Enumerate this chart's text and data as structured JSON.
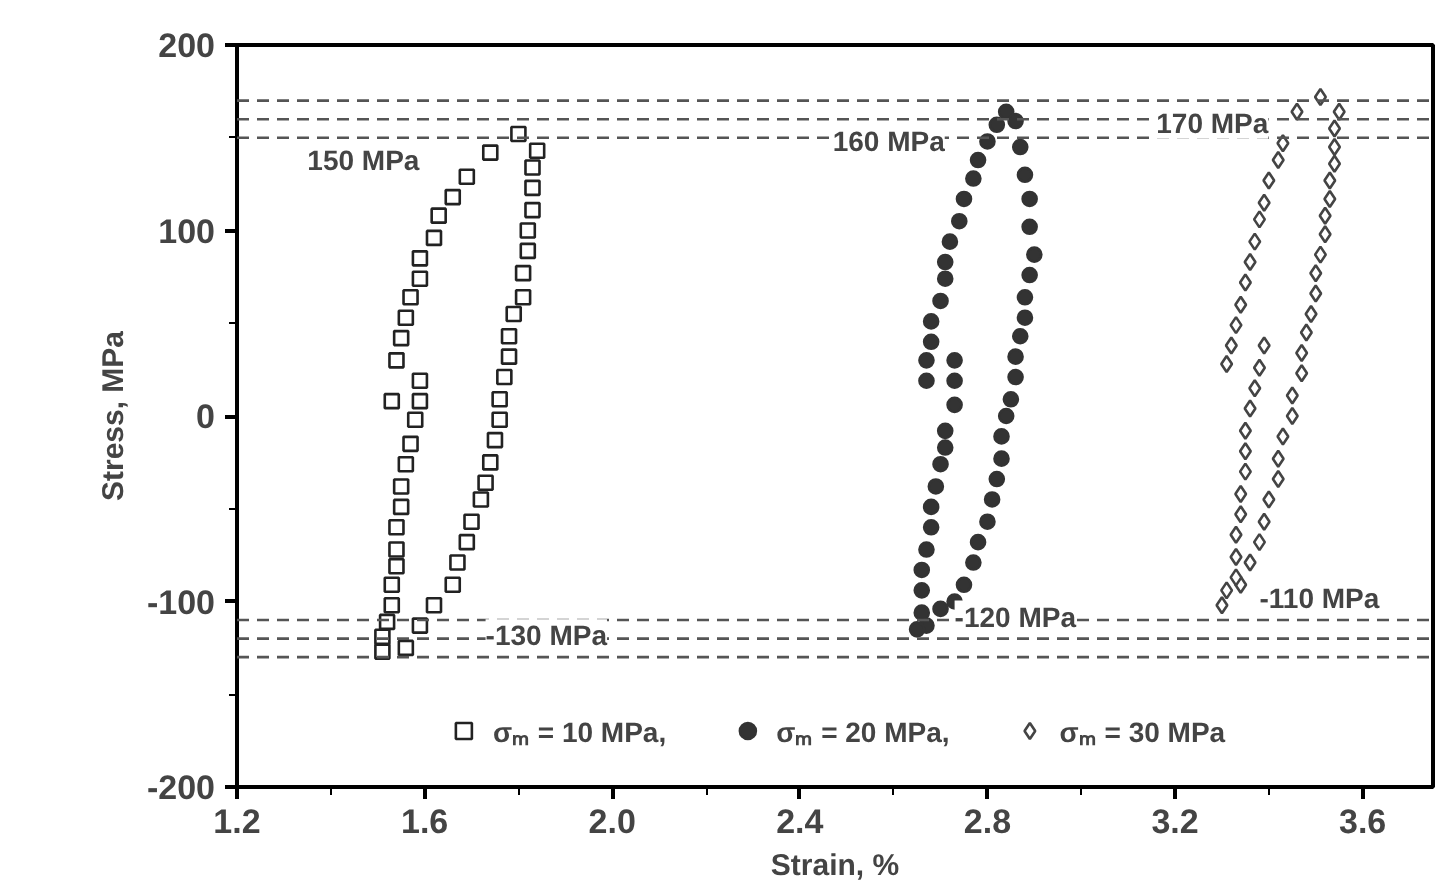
{
  "chart_data": {
    "type": "scatter",
    "xlabel": "Strain, %",
    "ylabel": "Stress, MPa",
    "xlim": [
      1.2,
      3.75
    ],
    "ylim": [
      -200,
      200
    ],
    "xticks": [
      1.2,
      {
        "value": 1.4,
        "label": null
      },
      1.6,
      {
        "value": 1.8,
        "label": null
      },
      {
        "value": 2.0,
        "label": "2.0"
      },
      {
        "value": 2.2,
        "label": null
      },
      2.4,
      {
        "value": 2.6,
        "label": null
      },
      2.8,
      {
        "value": 3.0,
        "label": null
      },
      3.2,
      {
        "value": 3.4,
        "label": null
      },
      3.6
    ],
    "yticks": [
      -200,
      {
        "value": -150,
        "label": null
      },
      -100,
      {
        "value": -50,
        "label": null
      },
      0,
      {
        "value": 50,
        "label": null
      },
      100,
      {
        "value": 150,
        "label": null
      },
      200
    ],
    "grid": false,
    "legend": "bottom",
    "series": [
      {
        "name": "σₘ = 10 MPa,",
        "color": "#222222",
        "marker": "square",
        "x": [
          1.53,
          1.54,
          1.55,
          1.56,
          1.57,
          1.59,
          1.59,
          1.62,
          1.63,
          1.66,
          1.69,
          1.74,
          1.8,
          1.84,
          1.83,
          1.83,
          1.83,
          1.82,
          1.82,
          1.81,
          1.81,
          1.79,
          1.78,
          1.78,
          1.77,
          1.76,
          1.76,
          1.75,
          1.74,
          1.73,
          1.72,
          1.7,
          1.69,
          1.67,
          1.66,
          1.62,
          1.59,
          1.56,
          1.51,
          1.51,
          1.52,
          1.53,
          1.53,
          1.54,
          1.54,
          1.54,
          1.55,
          1.55,
          1.56,
          1.57,
          1.58,
          1.59,
          1.59
        ],
        "values": [
          8,
          30,
          42,
          53,
          64,
          74,
          85,
          96,
          108,
          118,
          129,
          142,
          152,
          143,
          134,
          123,
          111,
          100,
          89,
          77,
          64,
          55,
          43,
          32,
          21,
          9,
          -2,
          -13,
          -25,
          -36,
          -45,
          -57,
          -68,
          -79,
          -91,
          -102,
          -113,
          -125,
          -127,
          -119,
          -111,
          -102,
          -91,
          -81,
          -72,
          -60,
          -49,
          -38,
          -26,
          -15,
          -2,
          8,
          19
        ]
      },
      {
        "name": "σₘ = 20 MPa,",
        "color": "#333333",
        "marker": "circle",
        "x": [
          2.67,
          2.67,
          2.68,
          2.68,
          2.7,
          2.71,
          2.71,
          2.72,
          2.74,
          2.75,
          2.77,
          2.78,
          2.8,
          2.82,
          2.84,
          2.86,
          2.87,
          2.88,
          2.89,
          2.89,
          2.9,
          2.89,
          2.88,
          2.88,
          2.87,
          2.86,
          2.86,
          2.85,
          2.84,
          2.83,
          2.83,
          2.82,
          2.81,
          2.8,
          2.78,
          2.77,
          2.75,
          2.73,
          2.7,
          2.67,
          2.65,
          2.66,
          2.66,
          2.66,
          2.67,
          2.68,
          2.68,
          2.69,
          2.7,
          2.71,
          2.71,
          2.73,
          2.73,
          2.73
        ],
        "values": [
          19,
          30,
          40,
          51,
          62,
          74,
          83,
          94,
          105,
          117,
          128,
          138,
          148,
          157,
          164,
          159,
          145,
          130,
          117,
          102,
          87,
          76,
          64,
          53,
          43,
          32,
          21,
          9,
          0,
          -11,
          -23,
          -34,
          -45,
          -57,
          -68,
          -79,
          -91,
          -100,
          -104,
          -113,
          -115,
          -106,
          -94,
          -83,
          -72,
          -60,
          -49,
          -38,
          -26,
          -17,
          -8,
          6,
          19,
          30
        ]
      },
      {
        "name": "σₘ = 30 MPa",
        "color": "#444444",
        "marker": "diamond",
        "x": [
          3.31,
          3.32,
          3.33,
          3.34,
          3.35,
          3.36,
          3.37,
          3.38,
          3.39,
          3.4,
          3.42,
          3.43,
          3.46,
          3.51,
          3.55,
          3.54,
          3.54,
          3.54,
          3.53,
          3.53,
          3.52,
          3.52,
          3.51,
          3.5,
          3.5,
          3.49,
          3.48,
          3.47,
          3.47,
          3.45,
          3.45,
          3.43,
          3.42,
          3.42,
          3.4,
          3.39,
          3.38,
          3.36,
          3.34,
          3.3,
          3.31,
          3.33,
          3.33,
          3.33,
          3.34,
          3.34,
          3.35,
          3.35,
          3.35,
          3.36,
          3.37,
          3.38,
          3.39
        ],
        "values": [
          28,
          38,
          49,
          60,
          72,
          83,
          94,
          106,
          115,
          127,
          138,
          147,
          164,
          172,
          164,
          155,
          145,
          136,
          127,
          117,
          108,
          98,
          87,
          77,
          66,
          55,
          45,
          34,
          23,
          11,
          0,
          -11,
          -23,
          -34,
          -45,
          -57,
          -68,
          -79,
          -91,
          -102,
          -94,
          -87,
          -76,
          -64,
          -53,
          -42,
          -30,
          -19,
          -8,
          4,
          15,
          26,
          38
        ]
      }
    ],
    "ref_lines": [
      {
        "axis": "y",
        "value": 170,
        "color": "#555555",
        "line_style": "dashed"
      },
      {
        "axis": "y",
        "value": 160,
        "color": "#555555",
        "line_style": "dashed"
      },
      {
        "axis": "y",
        "value": 150,
        "color": "#555555",
        "line_style": "dashed"
      },
      {
        "axis": "y",
        "value": -110,
        "color": "#555555",
        "line_style": "dashed"
      },
      {
        "axis": "y",
        "value": -120,
        "color": "#555555",
        "line_style": "dashed"
      },
      {
        "axis": "y",
        "value": -130,
        "color": "#555555",
        "line_style": "dashed"
      }
    ],
    "annotations": [
      {
        "text": "150 MPa",
        "x": 1.35,
        "y": 150
      },
      {
        "text": "160 MPa",
        "x": 2.47,
        "y": 160
      },
      {
        "text": "170 MPa",
        "x": 3.16,
        "y": 170
      },
      {
        "text": "-130 MPa",
        "x": 1.73,
        "y": -130
      },
      {
        "text": "-120 MPa",
        "x": 2.73,
        "y": -120
      },
      {
        "text": "-110 MPa",
        "x": 3.38,
        "y": -110
      }
    ]
  }
}
